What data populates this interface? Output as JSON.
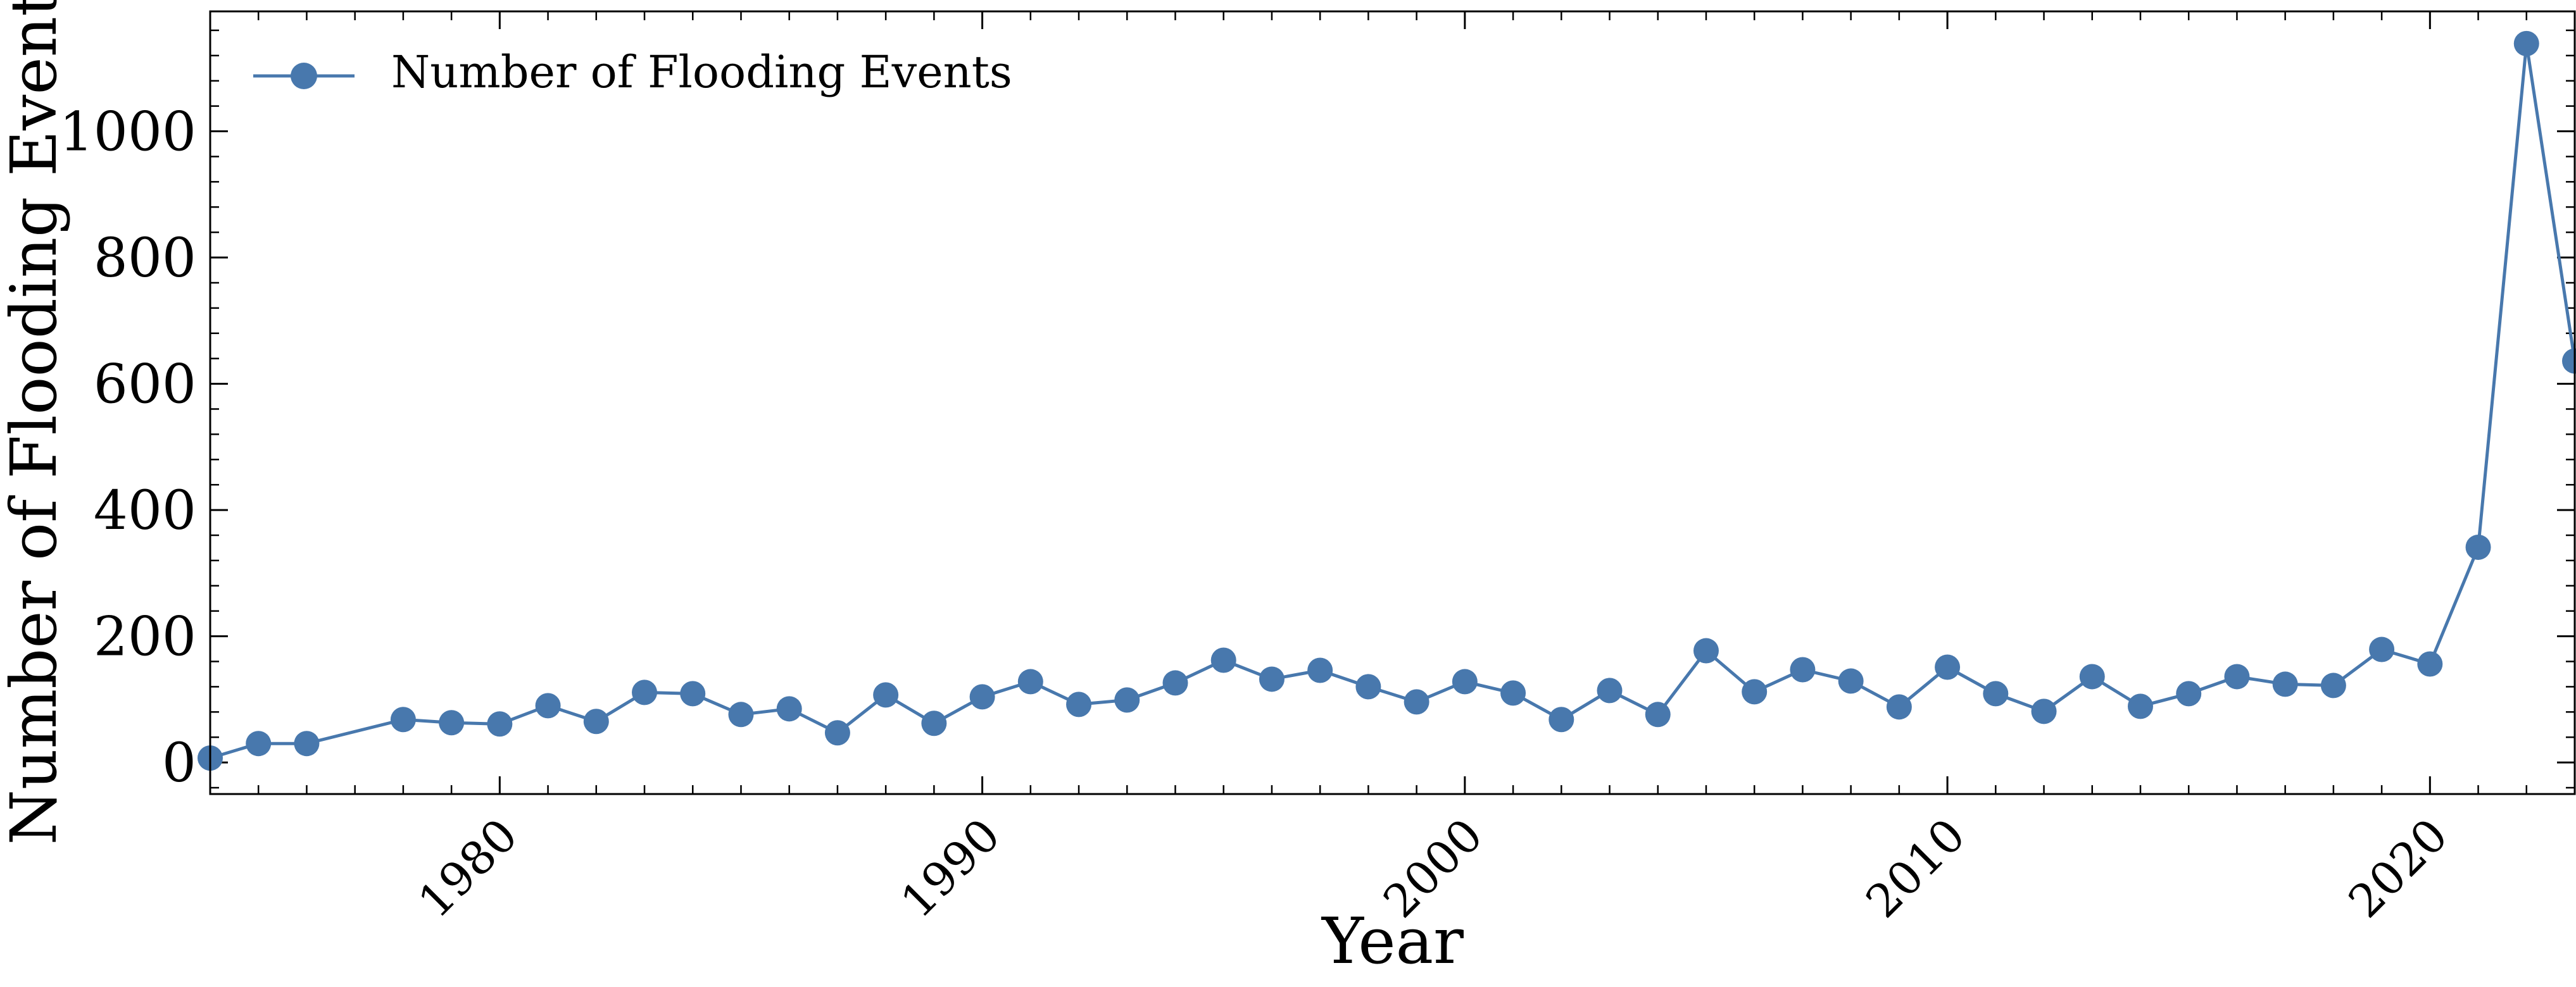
{
  "chart_data": {
    "type": "line",
    "title": "",
    "xlabel": "Year",
    "ylabel": "Number of Flooding Events",
    "xlim": [
      1974,
      2023
    ],
    "ylim": [
      -50,
      1190
    ],
    "x_ticks": [
      1980,
      1990,
      2000,
      2010,
      2020
    ],
    "y_ticks": [
      0,
      200,
      400,
      600,
      800,
      1000
    ],
    "legend_position": "top-left",
    "grid": false,
    "series": [
      {
        "name": "Number of Flooding Events",
        "color": "#4878ad",
        "marker": "circle",
        "x": [
          1974,
          1975,
          1976,
          1978,
          1979,
          1980,
          1981,
          1982,
          1983,
          1984,
          1985,
          1986,
          1987,
          1988,
          1989,
          1990,
          1991,
          1992,
          1993,
          1994,
          1995,
          1996,
          1997,
          1998,
          1999,
          2000,
          2001,
          2002,
          2003,
          2004,
          2005,
          2006,
          2007,
          2008,
          2009,
          2010,
          2011,
          2012,
          2013,
          2014,
          2015,
          2016,
          2017,
          2018,
          2019,
          2020,
          2021,
          2022,
          2023
        ],
        "y": [
          7,
          30,
          30,
          68,
          63,
          61,
          90,
          65,
          111,
          109,
          76,
          85,
          47,
          107,
          62,
          104,
          128,
          92,
          99,
          126,
          162,
          132,
          146,
          120,
          96,
          128,
          110,
          68,
          114,
          76,
          177,
          112,
          147,
          129,
          88,
          151,
          109,
          81,
          136,
          89,
          109,
          136,
          124,
          122,
          179,
          156,
          341,
          1139,
          636
        ]
      }
    ]
  }
}
